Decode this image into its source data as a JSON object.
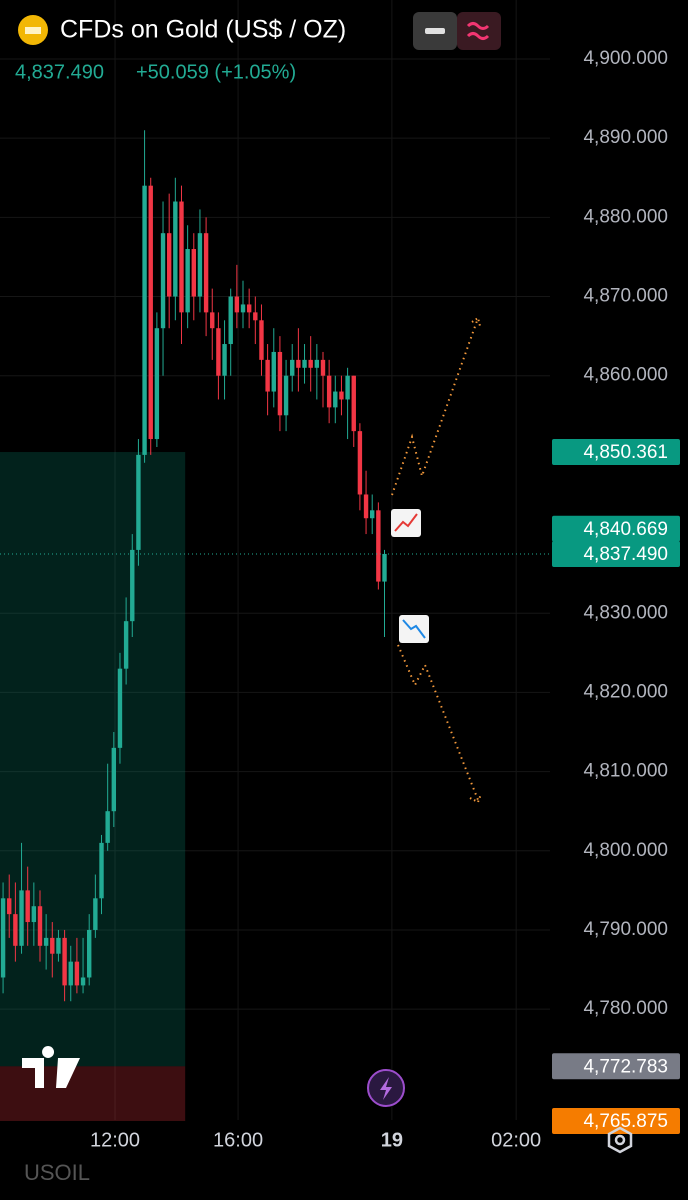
{
  "chart_data": {
    "type": "candlestick",
    "title": "CFDs on Gold (US$ / OZ)",
    "last_price": "4,837.490",
    "change": "+50.059 (+1.05%)",
    "footer_symbol": "USOIL",
    "up_color": "#22ab94",
    "down_color": "#f23645",
    "grid": true,
    "ylim": [
      4766,
      4907.45
    ],
    "xlim": [
      0,
      89.4
    ],
    "yticks": [
      {
        "value": 4900,
        "label": "4,900.000"
      },
      {
        "value": 4890,
        "label": "4,890.000"
      },
      {
        "value": 4880,
        "label": "4,880.000"
      },
      {
        "value": 4870,
        "label": "4,870.000"
      },
      {
        "value": 4860,
        "label": "4,860.000"
      },
      {
        "value": 4830,
        "label": "4,830.000"
      },
      {
        "value": 4820,
        "label": "4,820.000"
      },
      {
        "value": 4810,
        "label": "4,810.000"
      },
      {
        "value": 4800,
        "label": "4,800.000"
      },
      {
        "value": 4790,
        "label": "4,790.000"
      },
      {
        "value": 4780,
        "label": "4,780.000"
      }
    ],
    "xticks": [
      {
        "value": 18.7,
        "label": "12:00"
      },
      {
        "value": 38.7,
        "label": "16:00"
      },
      {
        "value": 63.7,
        "label": "19"
      },
      {
        "value": 83.9,
        "label": "02:00"
      }
    ],
    "price_labels": [
      {
        "value": 4850.361,
        "label": "4,850.361",
        "color": "#089981"
      },
      {
        "value": 4840.669,
        "label": "4,840.669",
        "color": "#089981"
      },
      {
        "value": 4837.49,
        "label": "4,837.490",
        "color": "#089981"
      },
      {
        "value": 4772.783,
        "label": "4,772.783",
        "color": "#787b86"
      },
      {
        "value": 4765.875,
        "label": "4,765.875",
        "color": "#f57c00"
      }
    ],
    "position_end": 30.1,
    "x": [
      0.5,
      1.5,
      2.5,
      3.5,
      4.5,
      5.5,
      6.5,
      7.5,
      8.5,
      9.5,
      10.5,
      11.5,
      12.5,
      13.5,
      14.5,
      15.5,
      16.5,
      17.5,
      18.5,
      19.5,
      20.5,
      21.5,
      22.5,
      23.5,
      24.5,
      25.5,
      26.5,
      27.5,
      28.5,
      29.5,
      30.5,
      31.5,
      32.5,
      33.5,
      34.5,
      35.5,
      36.5,
      37.5,
      38.5,
      39.5,
      40.5,
      41.5,
      42.5,
      43.5,
      44.5,
      45.5,
      46.5,
      47.5,
      48.5,
      49.5,
      50.5,
      51.5,
      52.5,
      53.5,
      54.5,
      55.5,
      56.5,
      57.5,
      58.5,
      59.5,
      60.5,
      61.5,
      62.5
    ],
    "open": [
      4784,
      4794,
      4792,
      4788,
      4795,
      4791,
      4793,
      4788,
      4789,
      4787,
      4789,
      4783,
      4786,
      4783,
      4784,
      4790,
      4794,
      4801,
      4805,
      4813,
      4823,
      4829,
      4838,
      4850,
      4884,
      4852,
      4866,
      4878,
      4870,
      4882,
      4868,
      4876,
      4870,
      4878,
      4868,
      4866,
      4860,
      4864,
      4870,
      4868,
      4869,
      4868,
      4867,
      4862,
      4858,
      4863,
      4855,
      4860,
      4862,
      4861,
      4862,
      4861,
      4862,
      4860,
      4856,
      4858,
      4857,
      4860,
      4853,
      4845,
      4842,
      4843,
      4834
    ],
    "high": [
      4796,
      4797,
      4796,
      4801,
      4798,
      4796,
      4795,
      4792,
      4791,
      4790,
      4790,
      4788,
      4789,
      4789,
      4792,
      4797,
      4802,
      4811,
      4815,
      4825,
      4832,
      4840,
      4852,
      4891,
      4885,
      4868,
      4882,
      4883,
      4885,
      4884,
      4879,
      4878,
      4881,
      4880,
      4871,
      4868,
      4867,
      4871,
      4874,
      4872,
      4871,
      4870,
      4869,
      4864,
      4866,
      4865,
      4862,
      4864,
      4866,
      4864,
      4865,
      4864,
      4863,
      4862,
      4860,
      4860,
      4861,
      4860,
      4854,
      4848,
      4845,
      4844,
      4838
    ],
    "low": [
      4782,
      4789,
      4786,
      4787,
      4788,
      4788,
      4786,
      4785,
      4784,
      4786,
      4781,
      4781,
      4782,
      4782,
      4783,
      4789,
      4792,
      4800,
      4803,
      4811,
      4821,
      4827,
      4836,
      4849,
      4850,
      4851,
      4860,
      4866,
      4867,
      4864,
      4866,
      4867,
      4868,
      4865,
      4862,
      4857,
      4857,
      4860,
      4866,
      4866,
      4866,
      4864,
      4860,
      4855,
      4856,
      4853,
      4853,
      4858,
      4858,
      4859,
      4858,
      4857,
      4856,
      4854,
      4854,
      4855,
      4852,
      4851,
      4843,
      4840,
      4840,
      4833,
      4827
    ],
    "close": [
      4794,
      4792,
      4788,
      4795,
      4791,
      4793,
      4788,
      4789,
      4787,
      4789,
      4783,
      4786,
      4783,
      4784,
      4790,
      4794,
      4801,
      4805,
      4813,
      4823,
      4829,
      4838,
      4850,
      4884,
      4852,
      4866,
      4878,
      4870,
      4882,
      4868,
      4876,
      4870,
      4878,
      4868,
      4866,
      4860,
      4864,
      4870,
      4868,
      4869,
      4868,
      4867,
      4862,
      4858,
      4863,
      4855,
      4860,
      4862,
      4861,
      4862,
      4861,
      4862,
      4860,
      4856,
      4858,
      4857,
      4860,
      4853,
      4845,
      4842,
      4843,
      4834,
      4837.49
    ]
  }
}
